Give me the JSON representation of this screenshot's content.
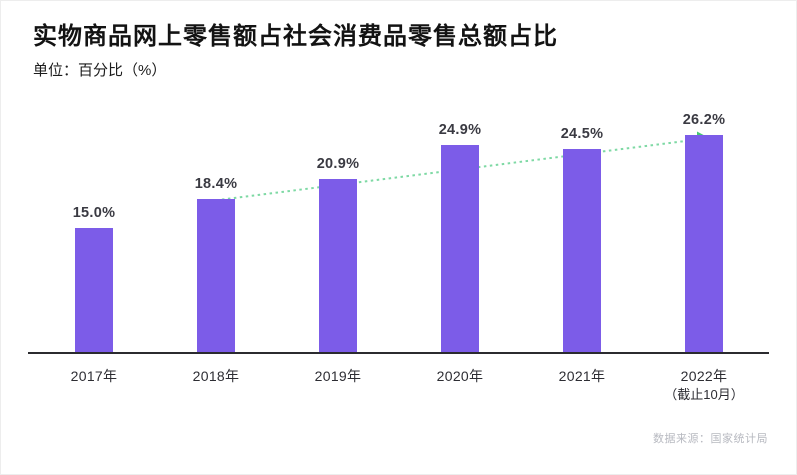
{
  "header": {
    "title": "实物商品网上零售额占社会消费品零售总额占比",
    "unit": "单位：百分比（%）"
  },
  "chart_data": {
    "type": "bar",
    "title": "实物商品网上零售额占社会消费品零售总额占比",
    "xlabel": "",
    "ylabel": "百分比（%）",
    "ylim": [
      0,
      30
    ],
    "grid": false,
    "legend": false,
    "categories": [
      "2017年",
      "2018年",
      "2019年",
      "2020年",
      "2021年",
      "2022年"
    ],
    "last_category_note": "（截止10月）",
    "values": [
      15.0,
      18.4,
      20.9,
      24.9,
      24.5,
      26.2
    ],
    "value_labels": [
      "15.0%",
      "18.4%",
      "20.9%",
      "24.9%",
      "24.5%",
      "26.2%"
    ],
    "annotations": "绿色虚线趋势箭头：从2018年柱顶延伸至2022年柱顶",
    "colors": {
      "bar": "#7C5CE8",
      "trend_line": "#7ED9A4",
      "trend_arrow": "#45C873",
      "axis": "#2b2b2f",
      "value_label": "#3a3a42",
      "source_text": "#b7b9c0"
    }
  },
  "footer": {
    "source": "数据来源：国家统计局"
  }
}
